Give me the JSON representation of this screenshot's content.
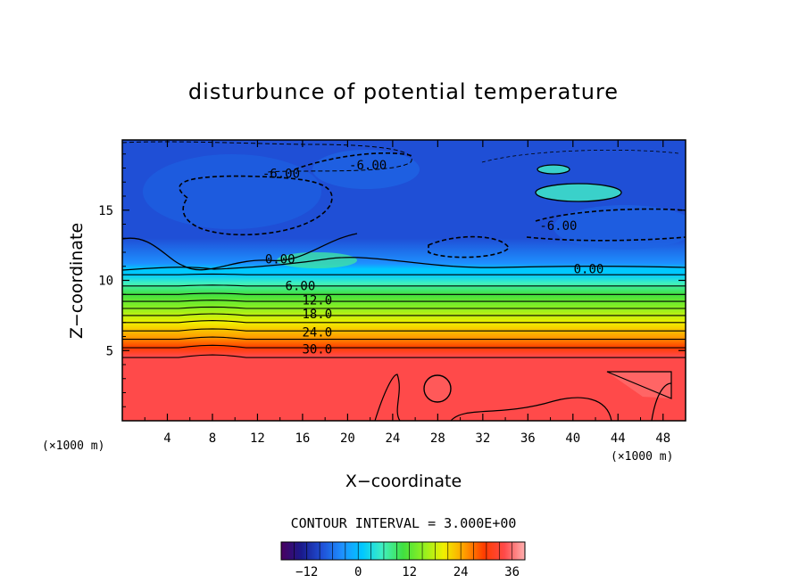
{
  "chart_data": {
    "type": "heatmap",
    "title": "disturbunce of potential temperature",
    "xlabel": "X−coordinate",
    "ylabel": "Z−coordinate",
    "x_unit": "(×1000 m)",
    "y_unit": "(×1000 m)",
    "xlim": [
      0,
      50
    ],
    "ylim": [
      0,
      20
    ],
    "x_ticks": [
      4,
      8,
      12,
      16,
      20,
      24,
      28,
      32,
      36,
      40,
      44,
      48
    ],
    "y_ticks": [
      5,
      10,
      15
    ],
    "contour_interval_text": "CONTOUR INTERVAL = 3.000E+00",
    "contour_interval": 3.0,
    "contour_labels": [
      {
        "text": "-6.00",
        "x": 14.1,
        "z": 17.3
      },
      {
        "text": "-6.00",
        "x": 21.8,
        "z": 17.9
      },
      {
        "text": "-6.00",
        "x": 38.7,
        "z": 13.6
      },
      {
        "text": "0.00",
        "x": 14.0,
        "z": 11.2
      },
      {
        "text": "0.00",
        "x": 41.4,
        "z": 10.5
      },
      {
        "text": "6.00",
        "x": 15.8,
        "z": 9.3
      },
      {
        "text": "12.0",
        "x": 17.3,
        "z": 8.3
      },
      {
        "text": "18.0",
        "x": 17.3,
        "z": 7.3
      },
      {
        "text": "24.0",
        "x": 17.3,
        "z": 6.0
      },
      {
        "text": "30.0",
        "x": 17.3,
        "z": 4.8
      }
    ],
    "colorbar": {
      "min": -18,
      "max": 39,
      "ticks": [
        -12,
        0,
        12,
        24,
        36
      ],
      "tick_labels": [
        "−12",
        "0",
        "12",
        "24",
        "36"
      ],
      "colors": [
        "#4a0060",
        "#1a1a8c",
        "#1f4fd6",
        "#1e90ff",
        "#00c8ff",
        "#40f0c0",
        "#40e040",
        "#90f020",
        "#f0f000",
        "#ffa000",
        "#ff3c00",
        "#ff4a4a",
        "#ffb0b0"
      ]
    },
    "profile_note_values": {
      "z": [
        0,
        4.3,
        4.6,
        5.2,
        6.0,
        7.0,
        8.0,
        9.0,
        9.8,
        10.4,
        10.8,
        11.2,
        13.0,
        15.0,
        17.0,
        19.0,
        20.0
      ],
      "value": [
        35,
        35,
        32,
        30,
        26,
        21,
        15,
        9,
        5,
        3,
        0.5,
        -3,
        -7,
        -9,
        -10,
        -8,
        -7
      ]
    }
  }
}
